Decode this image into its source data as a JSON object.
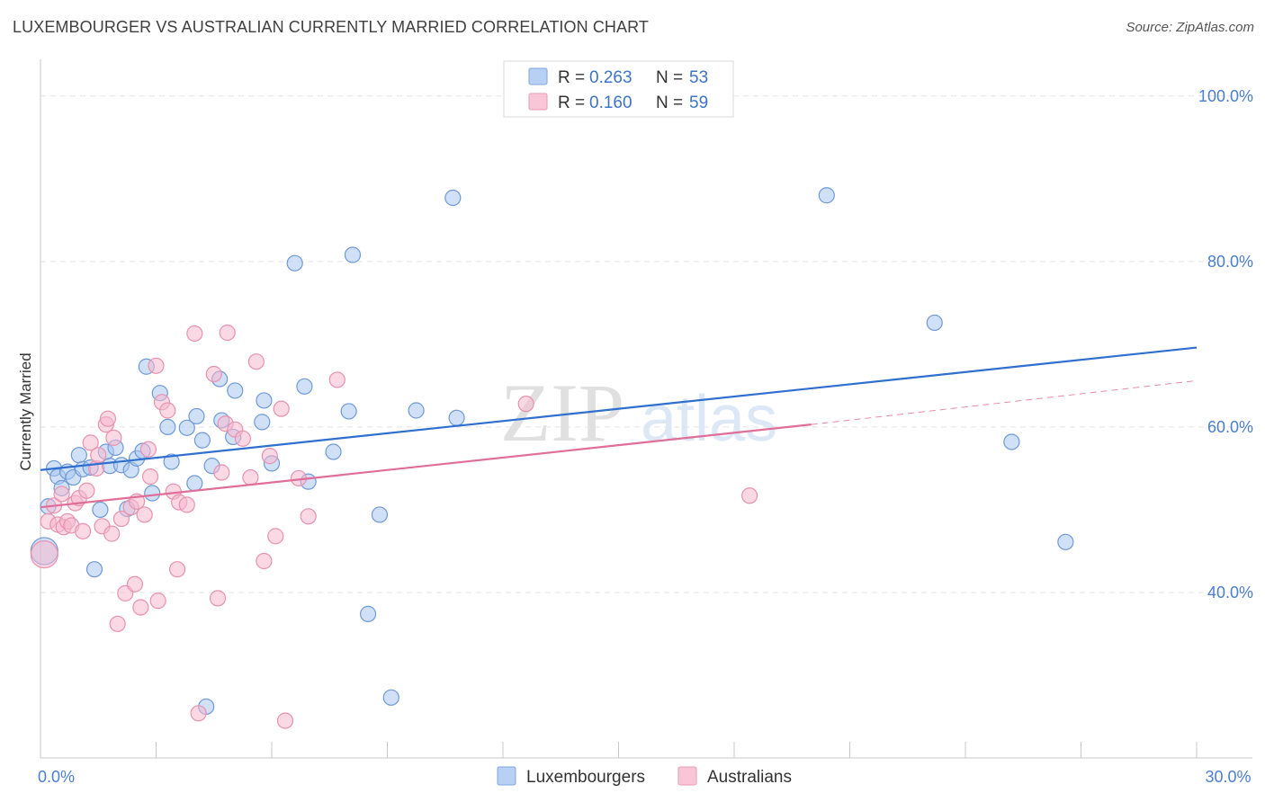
{
  "header": {
    "title": "LUXEMBOURGER VS AUSTRALIAN CURRENTLY MARRIED CORRELATION CHART",
    "source": "Source: ZipAtlas.com"
  },
  "legend": {
    "r_label": "R =",
    "n_label": "N =",
    "series": [
      {
        "r": "0.263",
        "n": "53"
      },
      {
        "r": "0.160",
        "n": "59"
      }
    ]
  },
  "watermark": {
    "zip": "ZIP",
    "atlas": "atlas"
  },
  "colors": {
    "lux_fill": "#a9c6f0",
    "lux_stroke": "#6f9ad8",
    "lux_line": "#2f6fcf",
    "aus_fill": "#f6b8cd",
    "aus_stroke": "#e892ae",
    "aus_line": "#e06e98",
    "grid": "#e3e3e3",
    "tick_text": "#4a7fd0"
  },
  "chart_data": {
    "type": "scatter",
    "xlabel": "",
    "ylabel": "Currently Married",
    "xlim": [
      0,
      30
    ],
    "ylim": [
      20,
      104
    ],
    "x_tick_labels": [
      {
        "v": 0,
        "label": "0.0%"
      },
      {
        "v": 30,
        "label": "30.0%"
      }
    ],
    "x_minor_ticks": [
      3,
      6,
      9,
      12,
      15,
      18,
      21,
      24,
      27
    ],
    "y_ticks": [
      {
        "v": 40,
        "label": "40.0%"
      },
      {
        "v": 60,
        "label": "60.0%"
      },
      {
        "v": 80,
        "label": "80.0%"
      },
      {
        "v": 100,
        "label": "100.0%"
      }
    ],
    "grid": true,
    "series": [
      {
        "name": "Luxembourgers",
        "trend": {
          "x": [
            0,
            30
          ],
          "y": [
            54.8,
            69.6
          ]
        },
        "points": [
          [
            0.1,
            45.0
          ],
          [
            0.2,
            50.4
          ],
          [
            0.35,
            55.0
          ],
          [
            0.45,
            54.0
          ],
          [
            0.55,
            52.6
          ],
          [
            0.7,
            54.6
          ],
          [
            0.85,
            53.9
          ],
          [
            1.0,
            56.6
          ],
          [
            1.1,
            54.9
          ],
          [
            1.3,
            55.1
          ],
          [
            1.4,
            42.8
          ],
          [
            1.55,
            50.0
          ],
          [
            1.7,
            57.0
          ],
          [
            1.8,
            55.3
          ],
          [
            1.95,
            57.5
          ],
          [
            2.1,
            55.4
          ],
          [
            2.25,
            50.1
          ],
          [
            2.35,
            54.8
          ],
          [
            2.5,
            56.2
          ],
          [
            2.65,
            57.1
          ],
          [
            2.75,
            67.3
          ],
          [
            2.9,
            52.0
          ],
          [
            3.1,
            64.1
          ],
          [
            3.3,
            60.0
          ],
          [
            3.4,
            55.8
          ],
          [
            3.8,
            59.9
          ],
          [
            4.0,
            53.2
          ],
          [
            4.05,
            61.3
          ],
          [
            4.2,
            58.4
          ],
          [
            4.3,
            26.2
          ],
          [
            4.45,
            55.3
          ],
          [
            4.65,
            65.8
          ],
          [
            4.7,
            60.8
          ],
          [
            5.0,
            58.8
          ],
          [
            5.05,
            64.4
          ],
          [
            5.75,
            60.6
          ],
          [
            5.8,
            63.2
          ],
          [
            6.0,
            55.6
          ],
          [
            6.6,
            79.8
          ],
          [
            6.85,
            64.9
          ],
          [
            6.95,
            53.4
          ],
          [
            7.6,
            57.0
          ],
          [
            8.0,
            61.9
          ],
          [
            8.1,
            80.8
          ],
          [
            8.5,
            37.4
          ],
          [
            8.8,
            49.4
          ],
          [
            9.1,
            27.3
          ],
          [
            9.75,
            62.0
          ],
          [
            10.7,
            87.7
          ],
          [
            10.8,
            61.1
          ],
          [
            20.4,
            88.0
          ],
          [
            23.2,
            72.6
          ],
          [
            25.2,
            58.2
          ],
          [
            26.6,
            46.1
          ]
        ]
      },
      {
        "name": "Australians",
        "trend": {
          "x": [
            0,
            20
          ],
          "y": [
            50.3,
            60.3
          ]
        },
        "trend_ext": {
          "x": [
            20,
            30
          ],
          "y": [
            60.3,
            65.6
          ]
        },
        "points": [
          [
            0.1,
            44.6
          ],
          [
            0.2,
            48.6
          ],
          [
            0.35,
            50.5
          ],
          [
            0.45,
            48.2
          ],
          [
            0.55,
            51.9
          ],
          [
            0.6,
            47.9
          ],
          [
            0.7,
            48.6
          ],
          [
            0.8,
            48.1
          ],
          [
            0.9,
            50.8
          ],
          [
            1.0,
            51.4
          ],
          [
            1.1,
            47.4
          ],
          [
            1.2,
            52.3
          ],
          [
            1.3,
            58.1
          ],
          [
            1.45,
            55.0
          ],
          [
            1.5,
            56.6
          ],
          [
            1.6,
            48.0
          ],
          [
            1.7,
            60.3
          ],
          [
            1.75,
            61.0
          ],
          [
            1.85,
            47.1
          ],
          [
            1.9,
            58.7
          ],
          [
            2.0,
            36.2
          ],
          [
            2.1,
            48.9
          ],
          [
            2.2,
            39.9
          ],
          [
            2.35,
            50.3
          ],
          [
            2.45,
            41.0
          ],
          [
            2.5,
            51.0
          ],
          [
            2.6,
            38.2
          ],
          [
            2.7,
            49.4
          ],
          [
            2.8,
            57.3
          ],
          [
            2.85,
            54.0
          ],
          [
            3.0,
            67.4
          ],
          [
            3.05,
            39.0
          ],
          [
            3.15,
            63.0
          ],
          [
            3.3,
            62.0
          ],
          [
            3.45,
            52.2
          ],
          [
            3.55,
            42.8
          ],
          [
            3.6,
            50.9
          ],
          [
            3.8,
            50.6
          ],
          [
            4.0,
            71.3
          ],
          [
            4.1,
            25.4
          ],
          [
            4.5,
            66.4
          ],
          [
            4.6,
            39.3
          ],
          [
            4.7,
            54.5
          ],
          [
            4.8,
            60.4
          ],
          [
            4.85,
            71.4
          ],
          [
            5.05,
            59.7
          ],
          [
            5.25,
            58.6
          ],
          [
            5.45,
            53.9
          ],
          [
            5.6,
            67.9
          ],
          [
            5.8,
            43.8
          ],
          [
            5.95,
            56.5
          ],
          [
            6.1,
            46.8
          ],
          [
            6.25,
            62.2
          ],
          [
            6.35,
            24.5
          ],
          [
            6.7,
            53.8
          ],
          [
            6.95,
            49.2
          ],
          [
            7.7,
            65.7
          ],
          [
            12.6,
            62.8
          ],
          [
            18.4,
            51.7
          ]
        ]
      }
    ]
  }
}
